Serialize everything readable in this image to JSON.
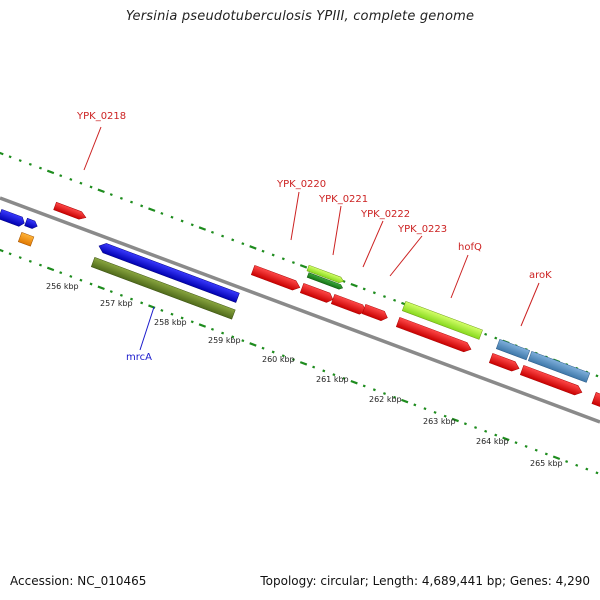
{
  "title": "Yersinia pseudotuberculosis YPIII, complete genome",
  "footer": {
    "accession": "Accession: NC_010465",
    "summary": "Topology: circular; Length: 4,689,441 bp; Genes: 4,290"
  },
  "colors": {
    "backbone": "#8a8a8a",
    "tick": "#1e8c1e",
    "label_red": "#cc2222",
    "label_blue": "#1a1acc"
  },
  "scale_labels": [
    {
      "name": "scale-label-256",
      "text": "256 kbp"
    },
    {
      "name": "scale-label-257",
      "text": "257 kbp"
    },
    {
      "name": "scale-label-258",
      "text": "258 kbp"
    },
    {
      "name": "scale-label-259",
      "text": "259 kbp"
    },
    {
      "name": "scale-label-260",
      "text": "260 kbp"
    },
    {
      "name": "scale-label-261",
      "text": "261 kbp"
    },
    {
      "name": "scale-label-262",
      "text": "262 kbp"
    },
    {
      "name": "scale-label-263",
      "text": "263 kbp"
    },
    {
      "name": "scale-label-264",
      "text": "264 kbp"
    },
    {
      "name": "scale-label-265",
      "text": "265 kbp"
    }
  ],
  "gene_labels": [
    {
      "name": "gene-label-ypk-0218",
      "text": "YPK_0218",
      "color": "#cc2222"
    },
    {
      "name": "gene-label-ypk-0220",
      "text": "YPK_0220",
      "color": "#cc2222"
    },
    {
      "name": "gene-label-ypk-0221",
      "text": "YPK_0221",
      "color": "#cc2222"
    },
    {
      "name": "gene-label-ypk-0222",
      "text": "YPK_0222",
      "color": "#cc2222"
    },
    {
      "name": "gene-label-ypk-0223",
      "text": "YPK_0223",
      "color": "#cc2222"
    },
    {
      "name": "gene-label-hofq",
      "text": "hofQ",
      "color": "#cc2222"
    },
    {
      "name": "gene-label-arok",
      "text": "aroK",
      "color": "#cc2222"
    },
    {
      "name": "gene-label-mrca",
      "text": "mrcA",
      "color": "#1a1acc"
    }
  ]
}
